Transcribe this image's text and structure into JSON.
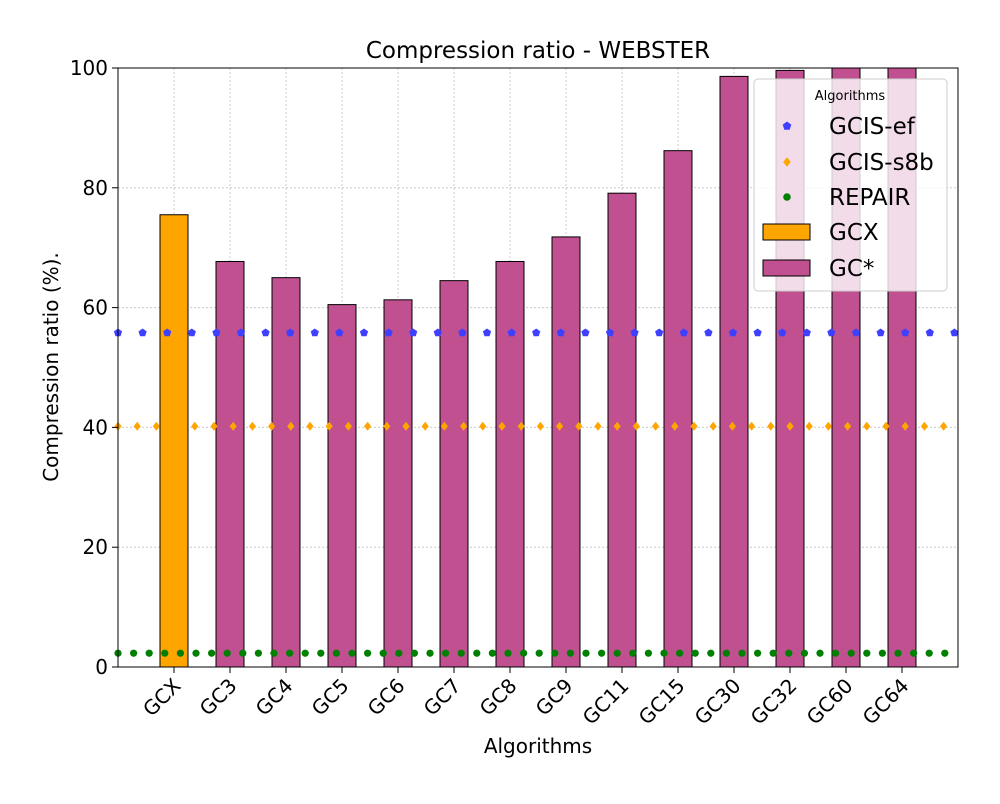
{
  "chart_data": {
    "type": "bar",
    "title": "Compression ratio -  WEBSTER",
    "xlabel": "Algorithms",
    "ylabel": "Compression ratio (%).",
    "ylim": [
      0,
      100
    ],
    "yticks": [
      0,
      20,
      40,
      60,
      80,
      100
    ],
    "grid": true,
    "categories": [
      "GCX",
      "GC3",
      "GC4",
      "GC5",
      "GC6",
      "GC7",
      "GC8",
      "GC9",
      "GC11",
      "GC15",
      "GC30",
      "GC32",
      "GC60",
      "GC64"
    ],
    "bars": [
      {
        "name": "GCX",
        "color": "#FFA500",
        "values": [
          75.5,
          null,
          null,
          null,
          null,
          null,
          null,
          null,
          null,
          null,
          null,
          null,
          null,
          null
        ]
      },
      {
        "name": "GC*",
        "color": "#C05090",
        "values": [
          null,
          67.7,
          65.0,
          60.5,
          61.3,
          64.5,
          67.7,
          71.8,
          79.1,
          86.2,
          98.6,
          99.6,
          100,
          100
        ]
      }
    ],
    "lines": [
      {
        "name": "GCIS-ef",
        "color": "#3F3FFF",
        "marker": "pentagon",
        "value": 55.8
      },
      {
        "name": "GCIS-s8b",
        "color": "#FFA500",
        "marker": "diamond",
        "value": 40.2
      },
      {
        "name": "REPAIR",
        "color": "#008000",
        "marker": "circle",
        "value": 2.3
      }
    ],
    "legend": {
      "title": "Algorithms",
      "position": "top-right",
      "entries": [
        "GCIS-ef",
        "GCIS-s8b",
        "REPAIR",
        "GCX",
        "GC*"
      ]
    }
  }
}
